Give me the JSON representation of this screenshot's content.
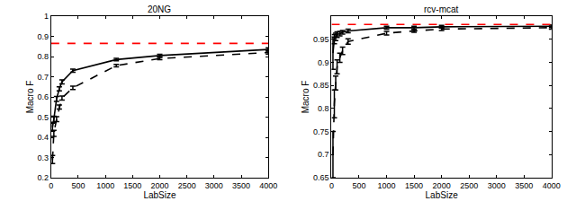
{
  "chart_data": [
    {
      "type": "line",
      "title": "20NG",
      "x_label": "LabSize",
      "y_label": "Macro F",
      "xlim": [
        0,
        4000
      ],
      "xticks": [
        0,
        500,
        1000,
        1500,
        2000,
        2500,
        3000,
        3500,
        4000
      ],
      "ylim": [
        0.2,
        1
      ],
      "yticks": [
        0.2,
        0.3,
        0.4,
        0.5,
        0.6,
        0.7,
        0.8,
        0.9,
        1
      ],
      "grid": false,
      "series": [
        {
          "color": "#000000",
          "line_style": "solid",
          "x": [
            25,
            50,
            100,
            150,
            200,
            400,
            1200,
            2000,
            4000
          ],
          "values": [
            0.45,
            0.49,
            0.59,
            0.64,
            0.675,
            0.73,
            0.785,
            0.805,
            0.835
          ],
          "error": [
            0.02,
            0.015,
            0.012,
            0.01,
            0.01,
            0.008,
            0.006,
            0.006,
            0.008
          ]
        },
        {
          "color": "#000000",
          "line_style": "dashed",
          "x": [
            25,
            50,
            100,
            150,
            200,
            400,
            1200,
            2000,
            4000
          ],
          "values": [
            0.29,
            0.42,
            0.49,
            0.55,
            0.595,
            0.645,
            0.755,
            0.79,
            0.82
          ],
          "error": [
            0.02,
            0.015,
            0.012,
            0.01,
            0.01,
            0.008,
            0.006,
            0.006,
            0.008
          ]
        },
        {
          "color": "#ff0000",
          "line_style": "dashed",
          "x": [
            0,
            4000
          ],
          "values": [
            0.865,
            0.865
          ]
        }
      ]
    },
    {
      "type": "line",
      "title": "rcv-mcat",
      "x_label": "LabSize",
      "y_label": "Macro F",
      "xlim": [
        0,
        4000
      ],
      "xticks": [
        0,
        500,
        1000,
        1500,
        2000,
        2500,
        3000,
        3500,
        4000
      ],
      "ylim": [
        0.65,
        1
      ],
      "yticks": [
        0.65,
        0.7,
        0.75,
        0.8,
        0.85,
        0.9,
        0.95
      ],
      "grid": false,
      "series": [
        {
          "color": "#000000",
          "line_style": "solid",
          "x": [
            25,
            50,
            75,
            100,
            150,
            200,
            300,
            1000,
            1500,
            2000,
            4000
          ],
          "values": [
            0.92,
            0.95,
            0.955,
            0.96,
            0.962,
            0.965,
            0.968,
            0.975,
            0.975,
            0.977,
            0.978
          ],
          "error": [
            0.035,
            0.01,
            0.008,
            0.006,
            0.005,
            0.004,
            0.004,
            0.003,
            0.003,
            0.003,
            0.003
          ]
        },
        {
          "color": "#000000",
          "line_style": "dashed",
          "x": [
            25,
            50,
            75,
            100,
            150,
            200,
            300,
            1000,
            1500,
            2000,
            4000
          ],
          "values": [
            0.7,
            0.81,
            0.855,
            0.89,
            0.91,
            0.925,
            0.945,
            0.963,
            0.968,
            0.972,
            0.975
          ],
          "error": [
            0.05,
            0.03,
            0.015,
            0.015,
            0.01,
            0.008,
            0.006,
            0.004,
            0.003,
            0.003,
            0.003
          ]
        },
        {
          "color": "#ff0000",
          "line_style": "dashed",
          "x": [
            0,
            4000
          ],
          "values": [
            0.982,
            0.982
          ]
        }
      ]
    }
  ]
}
